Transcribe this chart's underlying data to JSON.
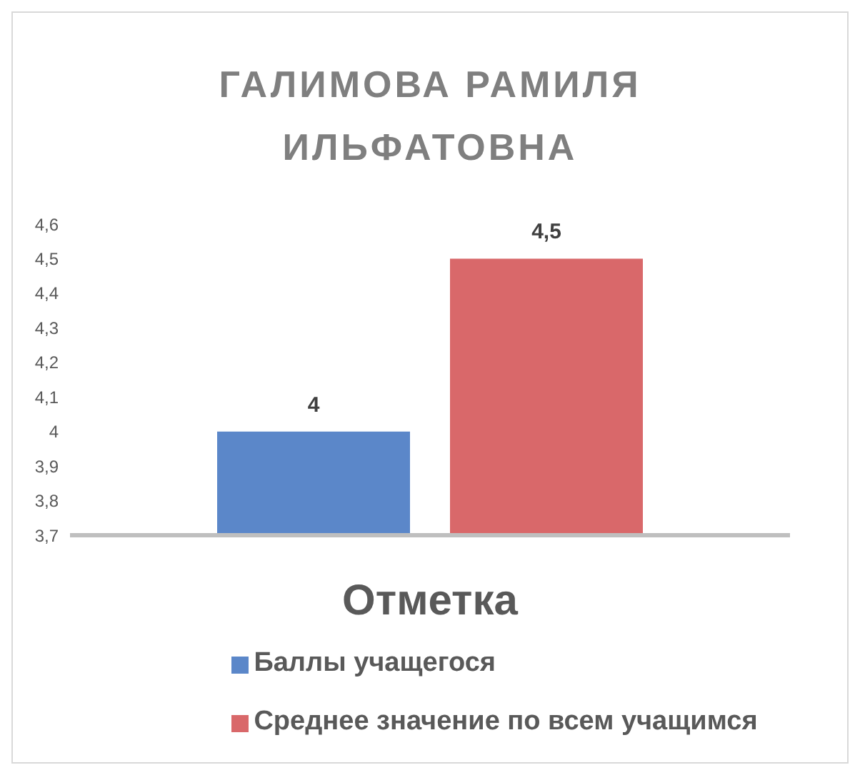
{
  "chart_data": {
    "type": "bar",
    "title": "ГАЛИМОВА РАМИЛЯ ИЛЬФАТОВНА",
    "categories": [
      "Отметка"
    ],
    "series": [
      {
        "name": "Баллы учащегося",
        "color": "#5b87c9",
        "values": [
          4
        ]
      },
      {
        "name": "Среднее значение по всем учащимся",
        "color": "#d9686a",
        "values": [
          4.5
        ]
      }
    ],
    "ylim": [
      3.7,
      4.6
    ],
    "yticks": [
      {
        "value": 3.7,
        "label": "3,7"
      },
      {
        "value": 3.8,
        "label": "3,8"
      },
      {
        "value": 3.9,
        "label": "3,9"
      },
      4,
      {
        "value": 4.1,
        "label": "4,1"
      },
      {
        "value": 4.2,
        "label": "4,2"
      },
      {
        "value": 4.3,
        "label": "4,3"
      },
      {
        "value": 4.4,
        "label": "4,4"
      },
      {
        "value": 4.5,
        "label": "4,5"
      },
      {
        "value": 4.6,
        "label": "4,6"
      }
    ],
    "value_labels": [
      "4",
      "4,5"
    ],
    "grid": false,
    "legend": "bottom"
  }
}
